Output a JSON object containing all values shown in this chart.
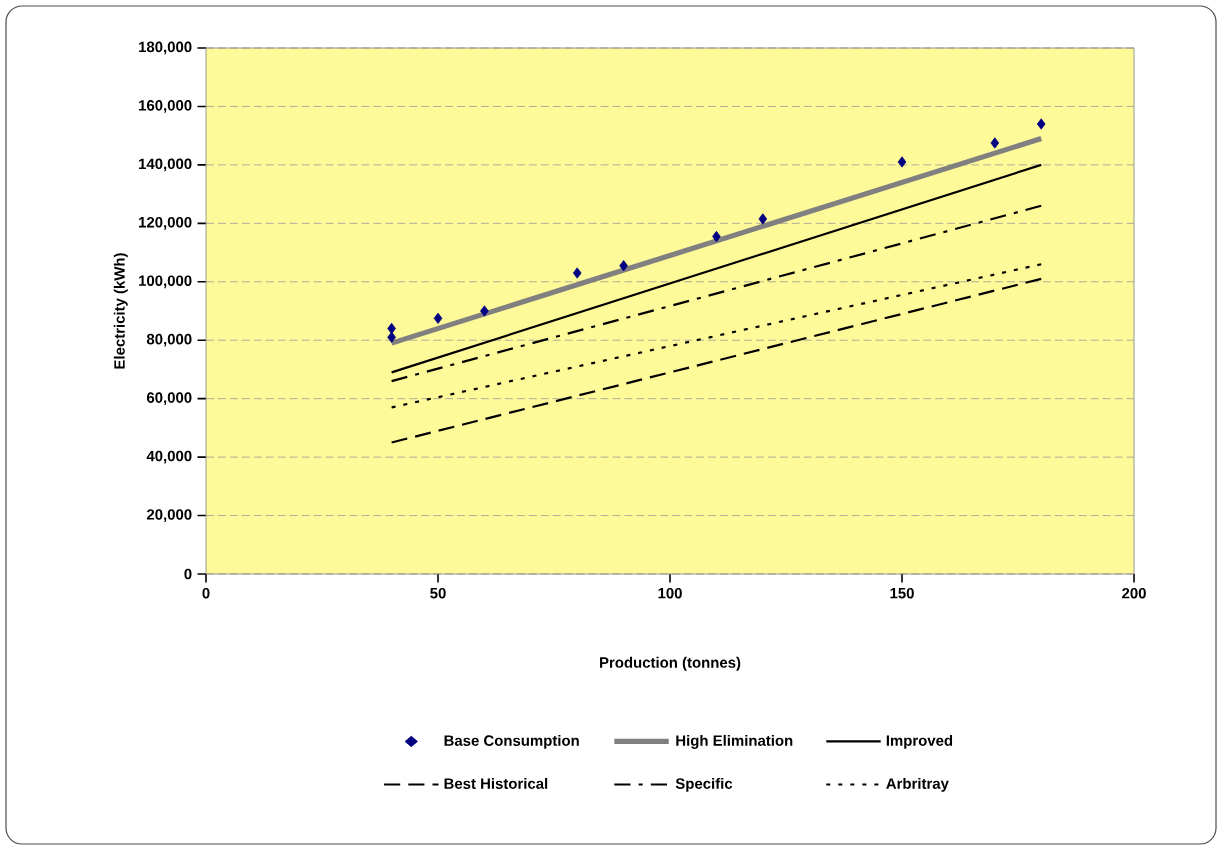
{
  "chart_data": {
    "type": "scatter",
    "xlabel": "Production (tonnes)",
    "ylabel": "Electricity (kWh)",
    "xlim": [
      0,
      200
    ],
    "xticks": [
      0,
      50,
      100,
      150,
      200
    ],
    "ylim": [
      0,
      180000
    ],
    "yticks": [
      {
        "value": 0,
        "label": "0"
      },
      {
        "value": 20000,
        "label": "20,000"
      },
      {
        "value": 40000,
        "label": "40,000"
      },
      {
        "value": 60000,
        "label": "60,000"
      },
      {
        "value": 80000,
        "label": "80,000"
      },
      {
        "value": 100000,
        "label": "100,000"
      },
      {
        "value": 120000,
        "label": "120,000"
      },
      {
        "value": 140000,
        "label": "140,000"
      },
      {
        "value": 160000,
        "label": "160,000"
      },
      {
        "value": 180000,
        "label": "180,000"
      }
    ],
    "grid": "y",
    "legend": "bottom",
    "series": [
      {
        "name": "Base Consumption",
        "marker": "diamond",
        "color": "#000080",
        "x": [
          40,
          40,
          50,
          60,
          80,
          90,
          110,
          120,
          150,
          170,
          180
        ],
        "values": [
          84000,
          81000,
          87500,
          90000,
          103000,
          105500,
          115500,
          121500,
          141000,
          147500,
          154000
        ]
      },
      {
        "name": "High Elimination",
        "type": "line",
        "color": "#808080",
        "line_style": "solid",
        "x": [
          40,
          180
        ],
        "values": [
          79000,
          149000
        ]
      },
      {
        "name": "Improved",
        "type": "line",
        "color": "#000000",
        "line_style": "solid",
        "x": [
          40,
          180
        ],
        "values": [
          69000,
          140000
        ]
      },
      {
        "name": "Best Historical",
        "type": "line",
        "color": "#000000",
        "line_style": "dashed",
        "x": [
          40,
          180
        ],
        "values": [
          45000,
          101000
        ]
      },
      {
        "name": "Specific",
        "type": "line",
        "color": "#000000",
        "line_style": "dashdot",
        "x": [
          40,
          180
        ],
        "values": [
          66000,
          126000
        ]
      },
      {
        "name": "Arbritray",
        "type": "line",
        "color": "#000000",
        "line_style": "dotted",
        "x": [
          40,
          180
        ],
        "values": [
          57000,
          106000
        ]
      }
    ]
  }
}
